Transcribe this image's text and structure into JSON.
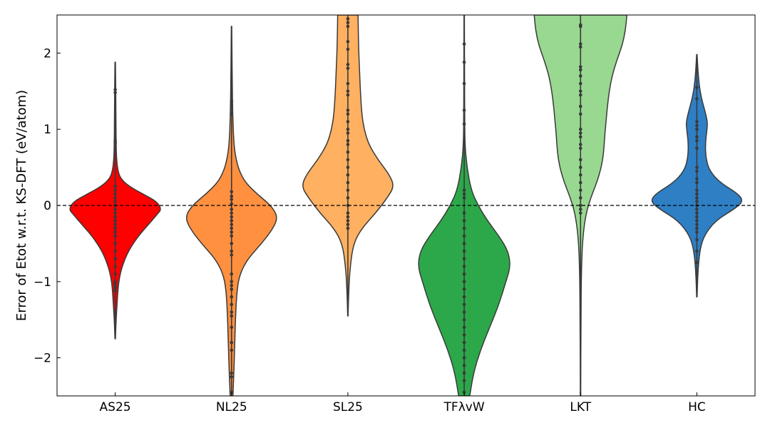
{
  "chart_data": {
    "type": "violin",
    "ylabel": "Error of Etot w.r.t. KS-DFT (eV/atom)",
    "xlabel": "",
    "ylim": [
      -2.5,
      2.5
    ],
    "yticks": [
      2,
      1,
      0,
      -1,
      -2
    ],
    "ytick_labels": [
      "2",
      "1",
      "0",
      "−1",
      "−2"
    ],
    "reference_line": {
      "y": 0,
      "style": "dashed"
    },
    "grid": false,
    "legend": "none",
    "series": [
      {
        "category": "AS25",
        "color": "#ff0000",
        "range": [
          -1.75,
          1.88
        ],
        "density": [
          [
            -1.75,
            0.005
          ],
          [
            -1.5,
            0.02
          ],
          [
            -1.3,
            0.04
          ],
          [
            -1.1,
            0.06
          ],
          [
            -0.95,
            0.09
          ],
          [
            -0.8,
            0.15
          ],
          [
            -0.6,
            0.28
          ],
          [
            -0.4,
            0.5
          ],
          [
            -0.25,
            0.72
          ],
          [
            -0.12,
            0.9
          ],
          [
            -0.05,
            1.0
          ],
          [
            0.05,
            0.9
          ],
          [
            0.15,
            0.6
          ],
          [
            0.25,
            0.3
          ],
          [
            0.35,
            0.12
          ],
          [
            0.45,
            0.06
          ],
          [
            0.6,
            0.03
          ],
          [
            0.8,
            0.02
          ],
          [
            1.2,
            0.015
          ],
          [
            1.5,
            0.012
          ],
          [
            1.88,
            0.005
          ]
        ],
        "points": [
          1.52,
          1.48,
          0.85,
          0.82,
          0.25,
          0.2,
          0.15,
          0.1,
          0.05,
          0.0,
          -0.05,
          -0.1,
          -0.15,
          -0.2,
          -0.25,
          -0.3,
          -0.35,
          -0.4,
          -0.5,
          -0.6,
          -0.7,
          -0.8,
          -0.9,
          -1.0,
          -1.02,
          -1.05,
          -1.08,
          -1.12,
          -1.4
        ]
      },
      {
        "category": "NL25",
        "color": "#ff9040",
        "range": [
          -2.5,
          2.35
        ],
        "density": [
          [
            -2.5,
            0.03
          ],
          [
            -2.2,
            0.05
          ],
          [
            -1.8,
            0.07
          ],
          [
            -1.4,
            0.09
          ],
          [
            -1.1,
            0.12
          ],
          [
            -0.9,
            0.18
          ],
          [
            -0.7,
            0.35
          ],
          [
            -0.5,
            0.65
          ],
          [
            -0.3,
            0.9
          ],
          [
            -0.15,
            1.0
          ],
          [
            0.0,
            0.85
          ],
          [
            0.15,
            0.55
          ],
          [
            0.3,
            0.3
          ],
          [
            0.45,
            0.17
          ],
          [
            0.6,
            0.1
          ],
          [
            0.8,
            0.05
          ],
          [
            1.2,
            0.025
          ],
          [
            1.6,
            0.015
          ],
          [
            2.0,
            0.01
          ],
          [
            2.35,
            0.004
          ]
        ],
        "points": [
          1.37,
          1.2,
          0.18,
          0.12,
          0.08,
          0.02,
          -0.05,
          -0.1,
          -0.15,
          -0.2,
          -0.25,
          -0.3,
          -0.35,
          -0.4,
          -0.5,
          -0.6,
          -0.65,
          -0.9,
          -1.0,
          -1.05,
          -1.1,
          -1.2,
          -1.3,
          -1.4,
          -1.45,
          -1.6,
          -1.8,
          -1.9,
          -2.2,
          -2.25,
          -2.45
        ]
      },
      {
        "category": "SL25",
        "color": "#ffb060",
        "range": [
          -1.45,
          2.5
        ],
        "density": [
          [
            -1.45,
            0.004
          ],
          [
            -1.1,
            0.02
          ],
          [
            -0.8,
            0.05
          ],
          [
            -0.5,
            0.12
          ],
          [
            -0.3,
            0.3
          ],
          [
            -0.1,
            0.6
          ],
          [
            0.1,
            0.85
          ],
          [
            0.25,
            1.0
          ],
          [
            0.4,
            0.9
          ],
          [
            0.6,
            0.65
          ],
          [
            0.8,
            0.45
          ],
          [
            1.0,
            0.35
          ],
          [
            1.2,
            0.3
          ],
          [
            1.5,
            0.27
          ],
          [
            1.8,
            0.25
          ],
          [
            2.1,
            0.23
          ],
          [
            2.5,
            0.22
          ]
        ],
        "points": [
          2.45,
          2.4,
          2.35,
          2.15,
          2.05,
          1.85,
          1.8,
          1.6,
          1.5,
          1.45,
          1.25,
          1.2,
          1.1,
          1.0,
          0.95,
          0.85,
          0.8,
          0.7,
          0.6,
          0.5,
          0.4,
          0.3,
          0.2,
          0.1,
          0.0,
          -0.1,
          -0.15,
          -0.2,
          -0.25,
          -0.3
        ]
      },
      {
        "category": "TFλvW",
        "color": "#2ca84a",
        "range": [
          -2.5,
          2.5
        ],
        "density": [
          [
            -2.5,
            0.12
          ],
          [
            -2.2,
            0.2
          ],
          [
            -1.9,
            0.35
          ],
          [
            -1.6,
            0.55
          ],
          [
            -1.3,
            0.75
          ],
          [
            -1.0,
            0.9
          ],
          [
            -0.8,
            1.0
          ],
          [
            -0.6,
            0.95
          ],
          [
            -0.4,
            0.75
          ],
          [
            -0.2,
            0.5
          ],
          [
            0.0,
            0.3
          ],
          [
            0.2,
            0.15
          ],
          [
            0.5,
            0.06
          ],
          [
            0.8,
            0.015
          ],
          [
            1.2,
            0.01
          ],
          [
            1.6,
            0.008
          ],
          [
            2.0,
            0.006
          ],
          [
            2.5,
            0.004
          ]
        ],
        "points": [
          2.12,
          1.88,
          1.6,
          1.25,
          1.07,
          0.2,
          0.15,
          0.1,
          -0.1,
          -0.2,
          -0.3,
          -0.4,
          -0.5,
          -0.6,
          -0.7,
          -0.8,
          -0.9,
          -1.0,
          -1.1,
          -1.2,
          -1.3,
          -1.4,
          -1.5,
          -1.6,
          -1.7,
          -1.8,
          -1.9,
          -2.0,
          -2.1,
          -2.2,
          -2.3,
          -2.45
        ]
      },
      {
        "category": "LKT",
        "color": "#98d890",
        "range": [
          -2.5,
          2.5
        ],
        "density": [
          [
            -2.5,
            0.004
          ],
          [
            -1.5,
            0.008
          ],
          [
            -0.8,
            0.02
          ],
          [
            -0.4,
            0.05
          ],
          [
            -0.1,
            0.12
          ],
          [
            0.1,
            0.22
          ],
          [
            0.3,
            0.35
          ],
          [
            0.5,
            0.45
          ],
          [
            0.7,
            0.5
          ],
          [
            0.9,
            0.52
          ],
          [
            1.1,
            0.55
          ],
          [
            1.3,
            0.58
          ],
          [
            1.5,
            0.62
          ],
          [
            1.7,
            0.68
          ],
          [
            1.9,
            0.78
          ],
          [
            2.1,
            0.9
          ],
          [
            2.3,
            0.97
          ],
          [
            2.5,
            1.0
          ]
        ],
        "points": [
          2.37,
          2.35,
          2.12,
          2.08,
          1.82,
          1.78,
          1.7,
          1.6,
          1.5,
          1.45,
          1.3,
          1.2,
          1.0,
          0.95,
          0.9,
          0.8,
          0.75,
          0.6,
          0.5,
          0.4,
          0.3,
          0.2,
          0.1,
          0.0,
          -0.05,
          -0.1
        ]
      },
      {
        "category": "HC",
        "color": "#2e7fc4",
        "range": [
          -1.2,
          1.98
        ],
        "density": [
          [
            -1.2,
            0.005
          ],
          [
            -0.9,
            0.02
          ],
          [
            -0.6,
            0.06
          ],
          [
            -0.4,
            0.15
          ],
          [
            -0.2,
            0.4
          ],
          [
            -0.05,
            0.8
          ],
          [
            0.05,
            1.0
          ],
          [
            0.15,
            0.9
          ],
          [
            0.3,
            0.5
          ],
          [
            0.45,
            0.28
          ],
          [
            0.6,
            0.2
          ],
          [
            0.8,
            0.18
          ],
          [
            1.0,
            0.22
          ],
          [
            1.1,
            0.23
          ],
          [
            1.25,
            0.17
          ],
          [
            1.45,
            0.08
          ],
          [
            1.7,
            0.03
          ],
          [
            1.98,
            0.005
          ]
        ],
        "points": [
          1.55,
          1.4,
          1.1,
          1.05,
          1.0,
          0.9,
          0.85,
          0.75,
          0.5,
          0.45,
          0.35,
          0.3,
          0.2,
          0.15,
          0.1,
          0.05,
          0.0,
          -0.05,
          -0.1,
          -0.15,
          -0.2,
          -0.25,
          -0.3,
          -0.35,
          -0.45,
          -0.6,
          -0.75
        ]
      }
    ]
  }
}
